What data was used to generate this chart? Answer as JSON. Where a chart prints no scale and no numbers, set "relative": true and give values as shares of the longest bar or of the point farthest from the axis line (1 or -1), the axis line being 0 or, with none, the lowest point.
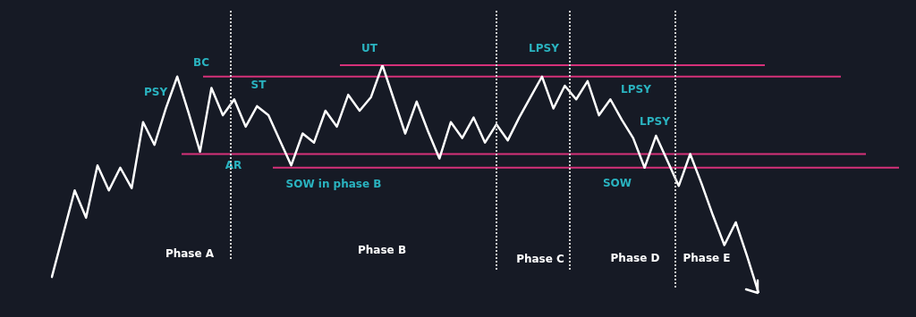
{
  "chart_data": {
    "type": "line",
    "relative": true,
    "legend": false,
    "marker": "none",
    "line_style": "solid",
    "categories": [
      null,
      null,
      null,
      null,
      null,
      null,
      null,
      null,
      null,
      null,
      null,
      null,
      null,
      null,
      null,
      null,
      null,
      null,
      null,
      null,
      null,
      null,
      null,
      null,
      null,
      null,
      null,
      null,
      null,
      null,
      null,
      null,
      null,
      null,
      null,
      null,
      null,
      null,
      null,
      null,
      null,
      null,
      null,
      null,
      null,
      null,
      null,
      null,
      null,
      null,
      null,
      null,
      null,
      null,
      null,
      null,
      null,
      null,
      null,
      null,
      null,
      null,
      null
    ],
    "series": [
      {
        "color": "#ffffff",
        "values": [
          0.07,
          0.26,
          0.45,
          0.33,
          0.56,
          0.45,
          0.55,
          0.46,
          0.75,
          0.65,
          0.81,
          0.95,
          0.79,
          0.62,
          0.9,
          0.78,
          0.85,
          0.73,
          0.82,
          0.78,
          0.67,
          0.56,
          0.7,
          0.66,
          0.8,
          0.73,
          0.87,
          0.8,
          0.86,
          1,
          0.85,
          0.7,
          0.84,
          0.71,
          0.59,
          0.75,
          0.68,
          0.77,
          0.66,
          0.74,
          0.67,
          0.77,
          0.86,
          0.95,
          0.81,
          0.91,
          0.85,
          0.93,
          0.78,
          0.85,
          0.76,
          0.68,
          0.55,
          0.69,
          0.58,
          0.47,
          0.61,
          0.48,
          0.34,
          0.21,
          0.31,
          0.16,
          0
        ]
      }
    ],
    "ref_lines": [
      {
        "axis": "y",
        "value": 1,
        "color": "#d6317a",
        "line_style": "solid"
      },
      {
        "axis": "y",
        "value": 0.95,
        "color": "#d6317a",
        "line_style": "solid"
      },
      {
        "axis": "y",
        "value": 0.61,
        "color": "#d6317a",
        "line_style": "solid"
      },
      {
        "axis": "y",
        "value": 0.55,
        "color": "#d6317a",
        "line_style": "solid"
      }
    ],
    "annotations": [
      "PSY",
      "BC",
      "ST",
      "AR",
      "SOW in phase B",
      "UT",
      "LPSY",
      "LPSY",
      "LPSY",
      "SOW",
      "Phase A",
      "Phase B",
      "Phase C",
      "Phase D",
      "Phase E"
    ]
  }
}
